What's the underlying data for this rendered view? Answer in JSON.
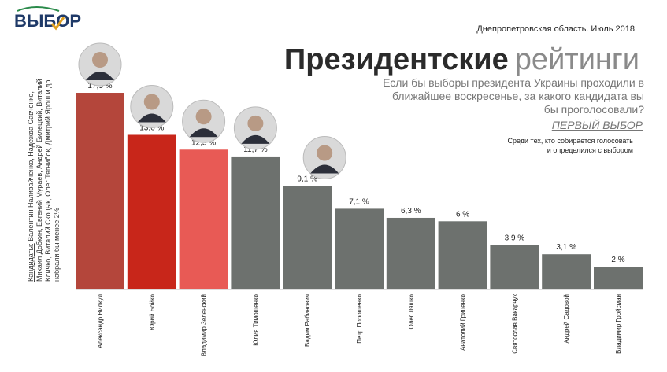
{
  "chart_data": {
    "type": "bar",
    "logo": "ВЫБОР",
    "region": "Днепропетровская область. Июль 2018",
    "title_bold": "Президентские",
    "title_light": "рейтинги",
    "question": [
      "Если бы выборы президента Украины проходили в",
      "ближайшее воскресенье, за какого кандидата вы",
      "бы проголосовали?"
    ],
    "source": "ПЕРВЫЙ ВЫБОР",
    "note": [
      "Среди тех, кто собирается голосовать",
      "и определился с выбором"
    ],
    "others_label": "Кандидаты:",
    "others": [
      " Валентин Наливайченко, Надежда Савченко,",
      "Михаил Добкин, Евгений Мураев, Андрей Билецкий, Виталий",
      "Кличко, Виталий Скоцык, Олег Тягнибок, Дмитрий Ярош и др.",
      "набрали бы менее 2%"
    ],
    "categories": [
      "Александр Вилкул",
      "Юрий Бойко",
      "Владимир Зеленский",
      "Юлия Тимошенко",
      "Вадим Рабинович",
      "Петр Порошенко",
      "Олег Ляшко",
      "Анатолий Гриценко",
      "Святослав Вакарчук",
      "Андрей Садовой",
      "Владимир Гройсман"
    ],
    "values": [
      17.3,
      13.6,
      12.3,
      11.7,
      9.1,
      7.1,
      6.3,
      6,
      3.9,
      3.1,
      2
    ],
    "value_labels": [
      "17,3 %",
      "13,6 %",
      "12,3 %",
      "11,7 %",
      "9,1 %",
      "7,1 %",
      "6,3 %",
      "6 %",
      "3,9 %",
      "3,1 %",
      "2 %"
    ],
    "colors": [
      "#b4463b",
      "#c8261a",
      "#e85a55",
      "#6d716e",
      "#6d716e",
      "#6d716e",
      "#6d716e",
      "#6d716e",
      "#6d716e",
      "#6d716e",
      "#6d716e"
    ]
  }
}
